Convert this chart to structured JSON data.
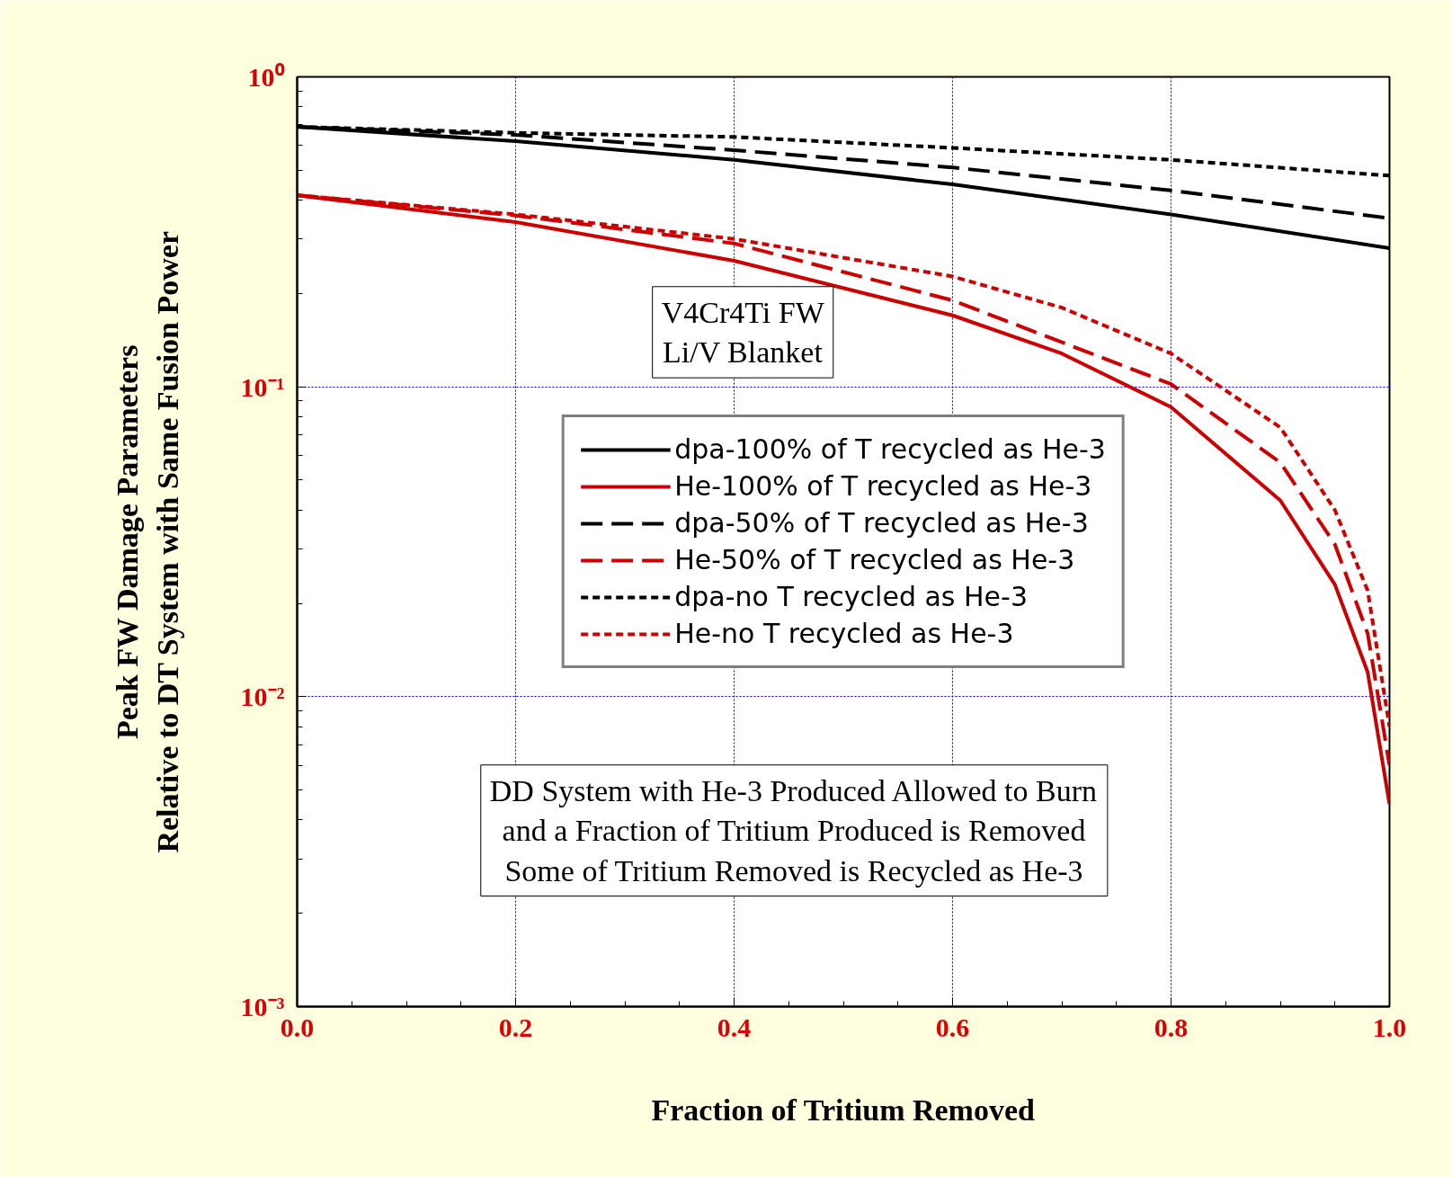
{
  "chart_data": {
    "type": "line",
    "xlabel": "Fraction of Tritium Removed",
    "ylabel": "Peak FW Damage Parameters\nRelative to DT System with Same Fusion Power",
    "log": "y",
    "grid": true,
    "legend": "center",
    "xlim": [
      0,
      1
    ],
    "ylim": [
      0.001,
      1
    ],
    "xticks": [
      {
        "value": 0,
        "label": "0.0"
      },
      {
        "value": 0.2,
        "label": "0.2"
      },
      {
        "value": 0.4,
        "label": "0.4"
      },
      {
        "value": 0.6,
        "label": "0.6"
      },
      {
        "value": 0.8,
        "label": "0.8"
      },
      {
        "value": 1,
        "label": "1.0"
      }
    ],
    "yticks": [
      {
        "value": 0.001,
        "label": "10⁻³"
      },
      {
        "value": 0.01,
        "label": "10⁻²"
      },
      {
        "value": 0.1,
        "label": "10⁻¹"
      },
      {
        "value": 1,
        "label": "10⁰"
      }
    ],
    "annotations": [
      "V4Cr4Ti FW\nLi/V Blanket",
      "DD System with He-3 Produced Allowed to Burn\nand a Fraction of Tritium Produced is Removed\nSome of Tritium Removed is Recycled as He-3"
    ],
    "series": [
      {
        "name": "dpa-100% of T recycled as He-3",
        "color": "#000000",
        "line_style": "solid",
        "x": [
          0,
          0.2,
          0.4,
          0.6,
          0.8,
          1.0
        ],
        "values": [
          0.69,
          0.62,
          0.54,
          0.45,
          0.36,
          0.28
        ]
      },
      {
        "name": "He-100% of T recycled as He-3",
        "color": "#cc0000",
        "line_style": "solid",
        "x": [
          0,
          0.2,
          0.4,
          0.6,
          0.7,
          0.8,
          0.9,
          0.95,
          0.98,
          1.0
        ],
        "values": [
          0.415,
          0.34,
          0.255,
          0.17,
          0.128,
          0.086,
          0.043,
          0.023,
          0.012,
          0.0045
        ]
      },
      {
        "name": "dpa-50% of T recycled as He-3",
        "color": "#000000",
        "line_style": "dashed",
        "x": [
          0,
          0.2,
          0.4,
          0.6,
          0.8,
          1.0
        ],
        "values": [
          0.69,
          0.65,
          0.58,
          0.51,
          0.43,
          0.35
        ]
      },
      {
        "name": "He-50% of T recycled as He-3",
        "color": "#cc0000",
        "line_style": "dashed",
        "x": [
          0,
          0.2,
          0.4,
          0.6,
          0.8,
          0.9,
          0.95,
          0.98,
          1.0
        ],
        "values": [
          0.415,
          0.357,
          0.29,
          0.19,
          0.102,
          0.057,
          0.031,
          0.016,
          0.006
        ]
      },
      {
        "name": "dpa-no T recycled as He-3",
        "color": "#000000",
        "line_style": "dotted",
        "x": [
          0,
          0.2,
          0.4,
          0.6,
          0.8,
          1.0
        ],
        "values": [
          0.69,
          0.66,
          0.64,
          0.59,
          0.54,
          0.48
        ]
      },
      {
        "name": "He-no T recycled as He-3",
        "color": "#cc0000",
        "line_style": "dotted",
        "x": [
          0,
          0.2,
          0.4,
          0.6,
          0.7,
          0.8,
          0.9,
          0.95,
          0.98,
          1.0
        ],
        "values": [
          0.415,
          0.36,
          0.3,
          0.227,
          0.18,
          0.128,
          0.074,
          0.04,
          0.022,
          0.008
        ]
      }
    ]
  }
}
